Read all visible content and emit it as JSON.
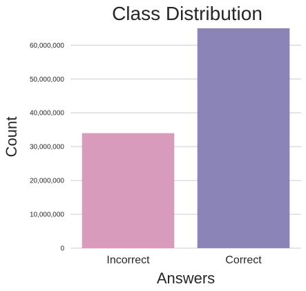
{
  "chart_data": {
    "type": "bar",
    "title": "Class Distribution",
    "xlabel": "Answers",
    "ylabel": "Count",
    "categories": [
      "Incorrect",
      "Correct"
    ],
    "values": [
      34000000,
      65000000
    ],
    "colors": [
      "#d89bbb",
      "#8a84b7"
    ],
    "ylim": [
      0,
      66000000
    ],
    "yticks": [
      0,
      10000000,
      20000000,
      30000000,
      40000000,
      50000000,
      60000000
    ],
    "ytick_labels": [
      "0",
      "10,000,000",
      "20,000,000",
      "30,000,000",
      "40,000,000",
      "50,000,000",
      "60,000,000"
    ],
    "grid": true,
    "grid_axis": "y"
  }
}
